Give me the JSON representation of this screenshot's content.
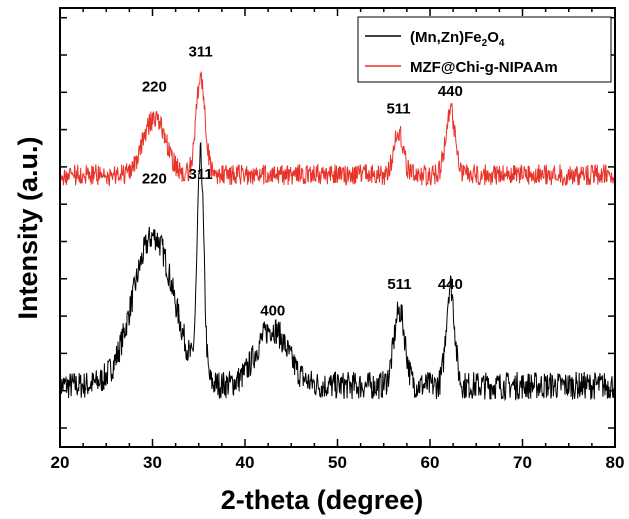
{
  "chart_data": {
    "type": "line",
    "xlabel": "2-theta (degree)",
    "ylabel": "Intensity (a.u.)",
    "xlim": [
      20,
      80
    ],
    "x_ticks": [
      "20",
      "30",
      "40",
      "50",
      "60",
      "70",
      "80"
    ],
    "ylim": [
      0,
      100
    ],
    "y_ticks_labeled": false,
    "grid": false,
    "legend_position": "top-right",
    "series": [
      {
        "name": "(Mn,Zn)Fe2O4",
        "color": "#000000",
        "baseline": 14,
        "noise": 3.2,
        "peaks": [
          {
            "x": 30.1,
            "height": 34,
            "width": 2.2
          },
          {
            "x": 35.2,
            "height": 50,
            "width": 0.35
          },
          {
            "x": 42.9,
            "height": 13,
            "width": 1.7
          },
          {
            "x": 56.7,
            "height": 17,
            "width": 0.6
          },
          {
            "x": 62.2,
            "height": 23,
            "width": 0.45
          }
        ]
      },
      {
        "name": "MZF@Chi-g-NIPAAm",
        "color": "#e8332a",
        "baseline": 62,
        "noise": 2.4,
        "peaks": [
          {
            "x": 30.2,
            "height": 13,
            "width": 1.2
          },
          {
            "x": 35.2,
            "height": 22,
            "width": 0.5
          },
          {
            "x": 56.6,
            "height": 10,
            "width": 0.5
          },
          {
            "x": 62.2,
            "height": 15,
            "width": 0.5
          }
        ]
      }
    ],
    "annotations": [
      {
        "series": 1,
        "label": "220",
        "x": 30.2,
        "y": 81
      },
      {
        "series": 1,
        "label": "311",
        "x": 35.2,
        "y": 89
      },
      {
        "series": 1,
        "label": "511",
        "x": 56.6,
        "y": 76
      },
      {
        "series": 1,
        "label": "440",
        "x": 62.2,
        "y": 80
      },
      {
        "series": 0,
        "label": "220",
        "x": 30.2,
        "y": 60
      },
      {
        "series": 0,
        "label": "311",
        "x": 35.2,
        "y": 61
      },
      {
        "series": 0,
        "label": "400",
        "x": 43.0,
        "y": 30
      },
      {
        "series": 0,
        "label": "511",
        "x": 56.7,
        "y": 36
      },
      {
        "series": 0,
        "label": "440",
        "x": 62.2,
        "y": 36
      }
    ]
  }
}
